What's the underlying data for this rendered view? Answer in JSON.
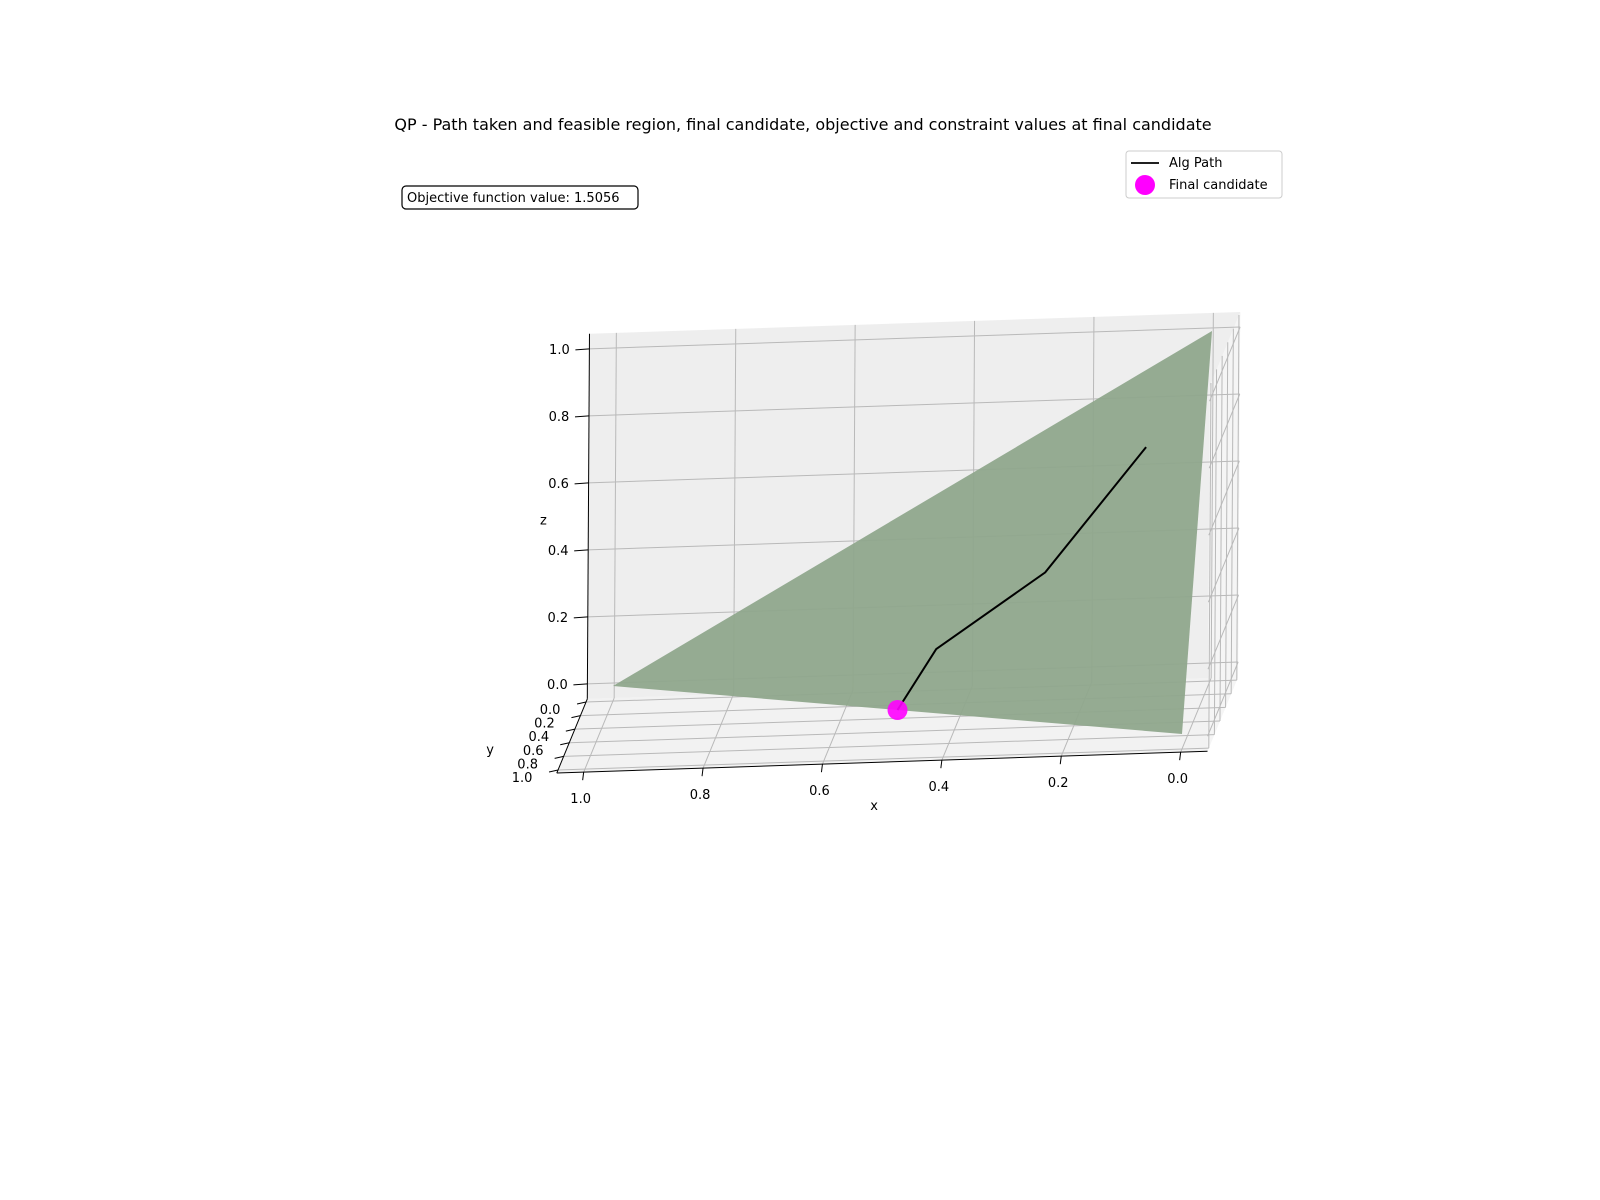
{
  "chart_data": {
    "type": "3d-surface-path",
    "title": "QP - Path taken and feasible region, final candidate, objective and constraint values at final candidate",
    "annotation": "Objective function value: 1.5056",
    "xlabel": "x",
    "ylabel": "y",
    "zlabel": "z",
    "x_ticks": [
      "0.0",
      "0.2",
      "0.4",
      "0.6",
      "0.8",
      "1.0"
    ],
    "y_ticks": [
      "0.0",
      "0.2",
      "0.4",
      "0.6",
      "0.8",
      "1.0"
    ],
    "z_ticks": [
      "0.0",
      "0.2",
      "0.4",
      "0.6",
      "0.8",
      "1.0"
    ],
    "xlim": [
      0,
      1
    ],
    "ylim": [
      0,
      1
    ],
    "zlim": [
      0,
      1
    ],
    "grid": true,
    "legend_placement": "top-right",
    "legend": [
      {
        "label": "Alg Path",
        "marker": "line",
        "color": "#000000"
      },
      {
        "label": "Final candidate",
        "marker": "circle",
        "color": "#ff00ff"
      }
    ],
    "feasible_region": {
      "vertices": [
        [
          1,
          0,
          0
        ],
        [
          0,
          1,
          0
        ],
        [
          0,
          0,
          1
        ]
      ],
      "color": "#8fa68c"
    },
    "path": {
      "name": "Alg Path",
      "color": "#000000",
      "points": [
        [
          0.1,
          0.2,
          0.7
        ],
        [
          0.26,
          0.37,
          0.37
        ],
        [
          0.44,
          0.41,
          0.16
        ],
        [
          0.5,
          0.5,
          0.0
        ]
      ]
    },
    "final_candidate": {
      "name": "Final candidate",
      "point": [
        0.5,
        0.5,
        0.0
      ],
      "color": "#ff00ff"
    }
  }
}
